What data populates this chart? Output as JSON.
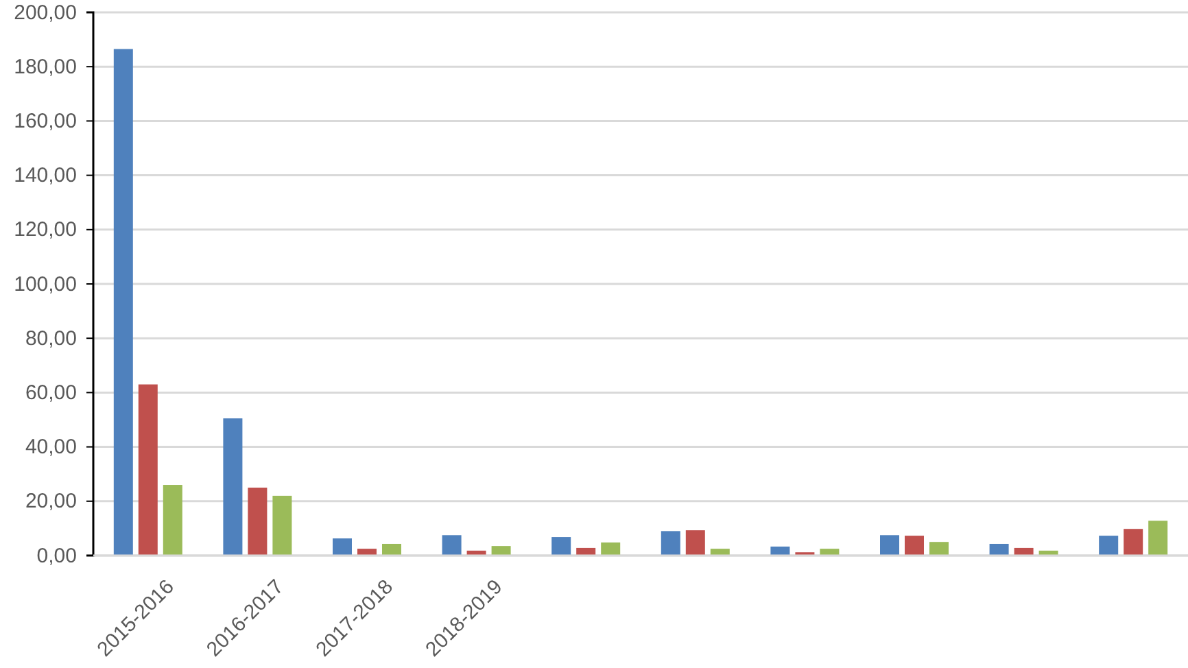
{
  "chart_data": {
    "type": "bar",
    "categories": [
      "2015-2016",
      "2016-2017",
      "2017-2018",
      "2018-2019",
      null,
      null,
      null,
      null,
      null,
      null
    ],
    "series": [
      {
        "color": "#4f81bd",
        "values": [
          186.5,
          50.5,
          6.3,
          7.5,
          6.8,
          9,
          3.3,
          7.5,
          4.3,
          7.3
        ]
      },
      {
        "color": "#c0504d",
        "values": [
          63,
          25,
          2.5,
          1.8,
          2.8,
          9.3,
          1.2,
          7.3,
          2.8,
          9.8
        ]
      },
      {
        "color": "#9bbb59",
        "values": [
          26,
          22,
          4.3,
          3.5,
          4.8,
          2.5,
          2.5,
          5,
          1.8,
          12.8
        ]
      }
    ],
    "ylim": [
      0,
      200
    ],
    "yticks": [
      {
        "value": 0,
        "label": "0,00"
      },
      {
        "value": 20,
        "label": "20,00"
      },
      {
        "value": 40,
        "label": "40,00"
      },
      {
        "value": 60,
        "label": "60,00"
      },
      {
        "value": 80,
        "label": "80,00"
      },
      {
        "value": 100,
        "label": "100,00"
      },
      {
        "value": 120,
        "label": "120,00"
      },
      {
        "value": 140,
        "label": "140,00"
      },
      {
        "value": 160,
        "label": "160,00"
      },
      {
        "value": 180,
        "label": "180,00"
      },
      {
        "value": 200,
        "label": "200,00"
      }
    ],
    "grid": "y"
  }
}
